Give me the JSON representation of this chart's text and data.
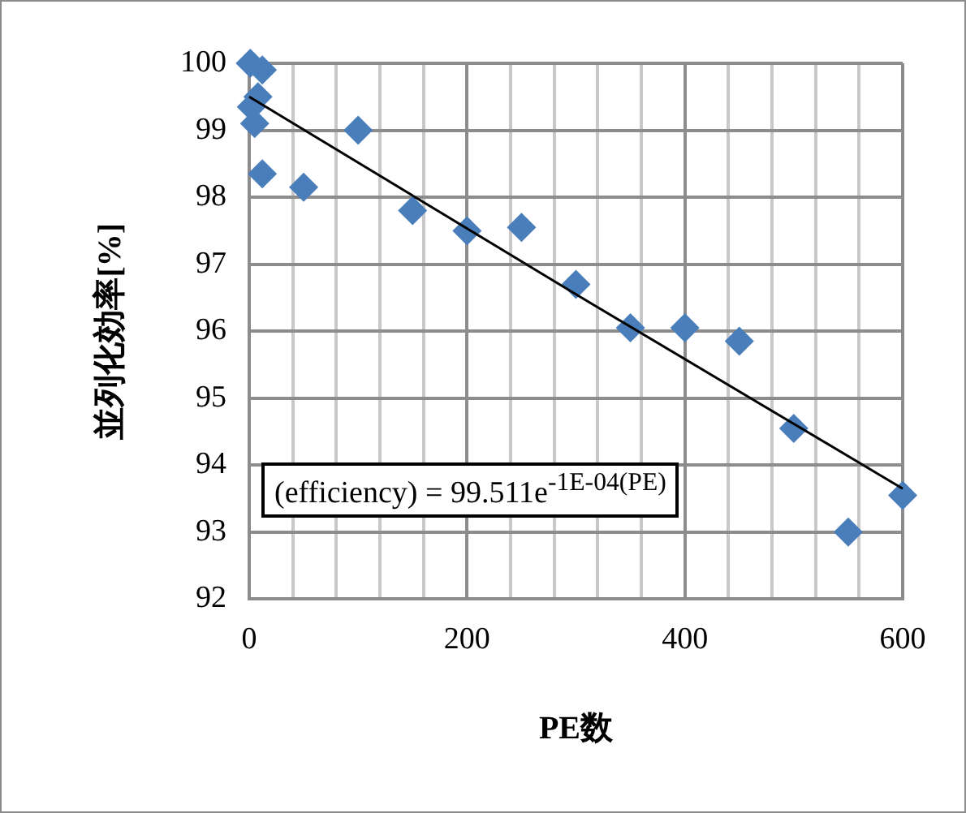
{
  "chart_data": {
    "type": "scatter",
    "xlabel": "PE数",
    "ylabel": "並列化効率[%]",
    "xlim": [
      0,
      600
    ],
    "xticks": [
      0,
      {
        "value": 40,
        "label": null
      },
      {
        "value": 80,
        "label": null
      },
      {
        "value": 120,
        "label": null
      },
      {
        "value": 160,
        "label": null
      },
      200,
      {
        "value": 240,
        "label": null
      },
      {
        "value": 280,
        "label": null
      },
      {
        "value": 320,
        "label": null
      },
      {
        "value": 360,
        "label": null
      },
      400,
      {
        "value": 440,
        "label": null
      },
      {
        "value": 480,
        "label": null
      },
      {
        "value": 520,
        "label": null
      },
      {
        "value": 560,
        "label": null
      },
      600
    ],
    "ylim": [
      92,
      100
    ],
    "yticks": [
      92,
      93,
      94,
      95,
      96,
      97,
      98,
      99,
      100
    ],
    "grid": true,
    "legend": false,
    "marker": "diamond",
    "series": [
      {
        "color": "#4a7ebb",
        "x": [
          1,
          12,
          8,
          2,
          5,
          12,
          50,
          100,
          150,
          200,
          250,
          300,
          350,
          400,
          450,
          500,
          550,
          600
        ],
        "values": [
          100.0,
          99.9,
          99.5,
          99.35,
          99.1,
          98.35,
          98.15,
          99.0,
          97.8,
          97.5,
          97.55,
          96.7,
          96.05,
          96.05,
          95.85,
          94.55,
          93.0,
          93.55
        ]
      },
      {
        "type": "line",
        "color": "#000000",
        "marker": "none",
        "x": [
          0,
          300,
          600
        ],
        "values": [
          99.5,
          96.55,
          93.65
        ]
      }
    ],
    "annotations": [
      "(efficiency) = 99.511e$^{-1E-04(PE)}$"
    ]
  }
}
